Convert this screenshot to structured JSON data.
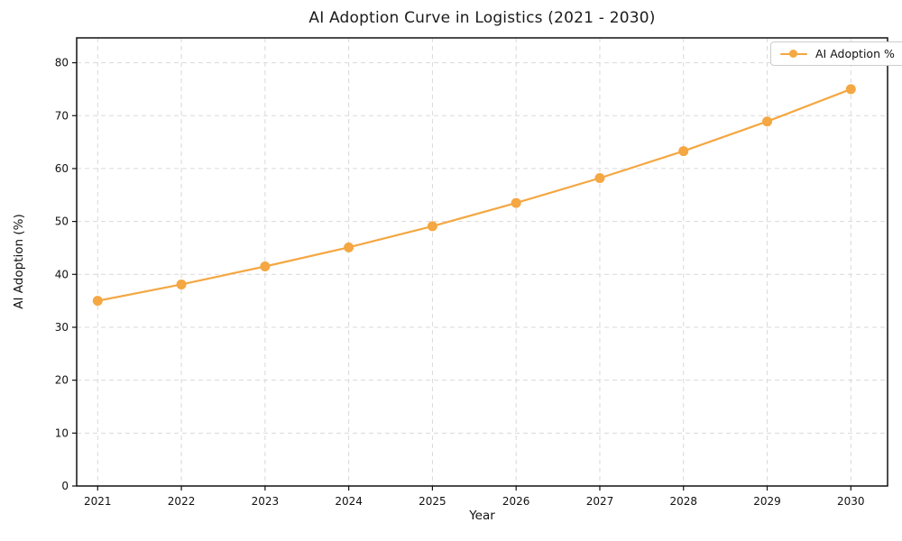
{
  "chart_data": {
    "type": "line",
    "title": "AI Adoption Curve in Logistics (2021 - 2030)",
    "xlabel": "Year",
    "ylabel": "AI Adoption (%)",
    "categories": [
      "2021",
      "2022",
      "2023",
      "2024",
      "2025",
      "2026",
      "2027",
      "2028",
      "2029",
      "2030"
    ],
    "series": [
      {
        "name": "AI Adoption %",
        "values": [
          35.0,
          38.1,
          41.5,
          45.1,
          49.1,
          53.5,
          58.2,
          63.3,
          68.9,
          75.0
        ],
        "color": "#F4A742",
        "marker": "circle",
        "line_style": "solid"
      }
    ],
    "ylim": [
      0,
      84.7
    ],
    "yticks": [
      0,
      10,
      20,
      30,
      40,
      50,
      60,
      70,
      80
    ],
    "grid": true,
    "grid_style": "dashed",
    "legend": {
      "position": "upper right",
      "entries": [
        "AI Adoption %"
      ]
    }
  }
}
